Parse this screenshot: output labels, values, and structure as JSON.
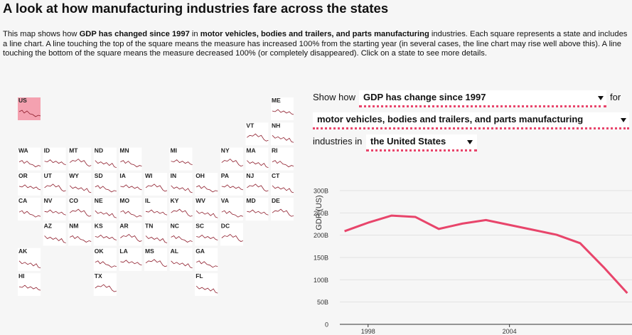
{
  "header": {
    "title": "A look at how manufacturing industries fare across the states",
    "description": [
      {
        "text": "This map shows how ",
        "bold": false
      },
      {
        "text": "GDP has changed since 1997",
        "bold": true
      },
      {
        "text": " in ",
        "bold": false
      },
      {
        "text": "motor vehicles, bodies and trailers, and parts manufacturing",
        "bold": true
      },
      {
        "text": " industries. Each square represents a state and includes a line chart. A line touching the top of the square means the measure has increased 100% from the starting year (in several cases, the line chart may rise well above this). A line touching the bottom of the square means the measure decreased 100% (or completely disappeared). Click on a state to see more details.",
        "bold": false
      }
    ]
  },
  "controls": {
    "show_how": "Show how",
    "measure": "GDP has change since 1997",
    "for": "for",
    "industry": "motor vehicles, bodies and trailers, and parts manufacturing",
    "industries_in": "industries in",
    "region": "the United States"
  },
  "map": {
    "states": [
      "US",
      "ME",
      "VT",
      "NH",
      "WA",
      "ID",
      "MT",
      "ND",
      "MN",
      "MI",
      "NY",
      "MA",
      "RI",
      "OR",
      "UT",
      "WY",
      "SD",
      "IA",
      "WI",
      "IN",
      "OH",
      "PA",
      "NJ",
      "CT",
      "CA",
      "NV",
      "CO",
      "NE",
      "MO",
      "IL",
      "KY",
      "WV",
      "VA",
      "MD",
      "DE",
      "AZ",
      "NM",
      "KS",
      "AR",
      "TN",
      "NC",
      "SC",
      "DC",
      "AK",
      "OK",
      "LA",
      "MS",
      "AL",
      "GA",
      "HI",
      "TX",
      "FL"
    ]
  },
  "chart_data": {
    "type": "line",
    "y_label": "GDP (US)",
    "x": [
      1997,
      1998,
      1999,
      2000,
      2001,
      2002,
      2003,
      2004,
      2005,
      2006,
      2007,
      2008,
      2009
    ],
    "series": [
      {
        "name": "the United States",
        "color": "#e8456b",
        "values": [
          209,
          228,
          244,
          241,
          214,
          226,
          234,
          223,
          212,
          201,
          182,
          128,
          70
        ]
      }
    ],
    "xlim": [
      1996.8,
      2009.2
    ],
    "xticks": [
      1998,
      2004
    ],
    "ylim": [
      0,
      300
    ],
    "yticks": [
      0,
      {
        "value": 50,
        "label": "50B"
      },
      {
        "value": 100,
        "label": "100B"
      },
      {
        "value": 150,
        "label": "150B"
      },
      {
        "value": 200,
        "label": "200B"
      },
      {
        "value": 250,
        "label": "250B"
      },
      {
        "value": 300,
        "label": "300B"
      }
    ],
    "grid": true
  }
}
